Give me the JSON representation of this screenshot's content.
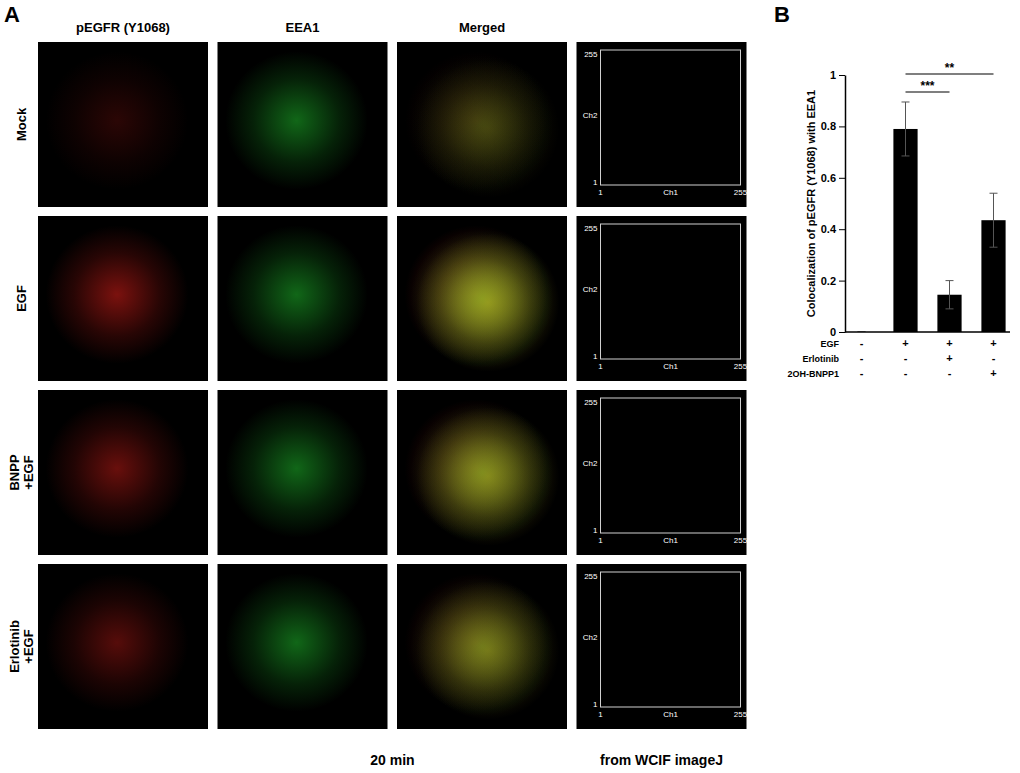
{
  "panel_a": {
    "label": "A",
    "columns": [
      "pEGFR (Y1068)",
      "EEA1",
      "Merged"
    ],
    "rows": [
      [
        "Mock"
      ],
      [
        "EGF"
      ],
      [
        "BNPP",
        "+EGF"
      ],
      [
        "Erlotinib",
        "+EGF"
      ]
    ],
    "time": "20 min",
    "scatter_source": "from WCIF imageJ",
    "scatter_axes": {
      "x_label": "Ch1",
      "y_label": "Ch2",
      "min_label": "1",
      "max_label": "255"
    }
  },
  "panel_b_label": "B",
  "chart_data": {
    "type": "bar",
    "y_label": "Colocalization of pEGFR (Y1068) with EEA1",
    "categories": [
      null,
      null,
      null,
      null
    ],
    "values": [
      0,
      0.79,
      0.145,
      0.435
    ],
    "error": [
      0,
      0.105,
      0.055,
      0.105
    ],
    "color": "#000000",
    "ylim": [
      0,
      1
    ],
    "yticks": [
      0,
      0.2,
      0.4,
      0.6,
      0.8,
      1
    ],
    "conditions": [
      {
        "label": "EGF",
        "values": [
          "-",
          "+",
          "+",
          "+"
        ]
      },
      {
        "label": "Erlotinib",
        "values": [
          "-",
          "-",
          "+",
          "-"
        ]
      },
      {
        "label": "2OH-BNPP1",
        "values": [
          "-",
          "-",
          "-",
          "+"
        ]
      }
    ],
    "significance": [
      {
        "pair": [
          1,
          2
        ],
        "label": "***"
      },
      {
        "pair": [
          1,
          3
        ],
        "label": "**"
      }
    ]
  }
}
